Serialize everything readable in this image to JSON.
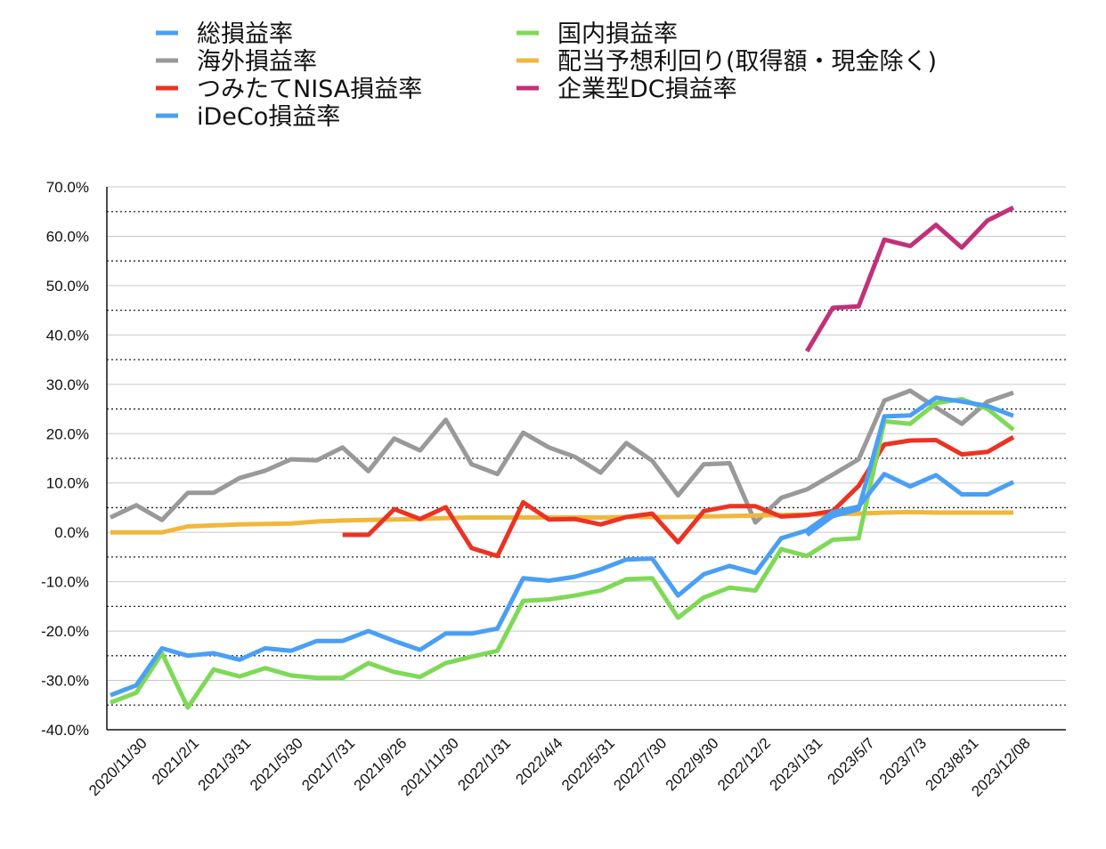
{
  "chart_data": {
    "type": "line",
    "title": "",
    "xlabel": "",
    "ylabel": "",
    "ylim": [
      -40,
      70
    ],
    "y_ticks": [
      "70.0%",
      "60.0%",
      "50.0%",
      "40.0%",
      "30.0%",
      "20.0%",
      "10.0%",
      "0.0%",
      "-10.0%",
      "-20.0%",
      "-30.0%",
      "-40.0%"
    ],
    "x_tick_labels": [
      "2020/11/30",
      "2021/2/1",
      "2021/3/31",
      "2021/5/30",
      "2021/7/31",
      "2021/9/26",
      "2021/11/30",
      "2022/1/31",
      "2022/4/4",
      "2022/5/31",
      "2022/7/30",
      "2022/9/30",
      "2022/12/2",
      "2023/1/31",
      "2023/5/7",
      "2023/7/3",
      "2023/8/31",
      "2023/12/08"
    ],
    "grid": "solid lines at labeled ticks, dotted lines at midpoints",
    "legend_position": "top",
    "series": [
      {
        "name": "総損益率",
        "color": "#4a9ff5",
        "values": [
          -33,
          -31,
          -23.5,
          -25,
          -24.5,
          -25.8,
          -23.5,
          -24,
          -22,
          -22,
          -20,
          -22,
          -23.8,
          -20.5,
          -20.5,
          -19.5,
          -9.3,
          -9.8,
          -9,
          -7.5,
          -5.5,
          -5.3,
          -12.8,
          -8.5,
          -6.8,
          -8.2,
          -1.2,
          0.4,
          4.1,
          5.2,
          11.8,
          9.3,
          11.6,
          7.7,
          7.7,
          10.2
        ]
      },
      {
        "name": "国内損益率",
        "color": "#7ed957",
        "values": [
          -34.5,
          -32.5,
          -24.5,
          -35.5,
          -27.8,
          -29.2,
          -27.5,
          -29,
          -29.5,
          -29.5,
          -26.5,
          -28.3,
          -29.3,
          -26.5,
          -25.2,
          -24,
          -13.9,
          -13.6,
          -12.8,
          -11.8,
          -9.5,
          -9.3,
          -17.3,
          -13.2,
          -11.2,
          -11.8,
          -3.4,
          -4.8,
          -1.5,
          -1.2,
          22.5,
          22,
          26.2,
          27,
          25,
          20.8
        ]
      },
      {
        "name": "海外損益率",
        "color": "#999999",
        "values": [
          3,
          5.5,
          2.5,
          8,
          8,
          11,
          12.5,
          14.8,
          14.6,
          17.2,
          12.4,
          19,
          16.6,
          22.8,
          13.8,
          11.8,
          20.2,
          17.2,
          15.3,
          12.1,
          18.1,
          14.5,
          7.5,
          13.8,
          14,
          2,
          7,
          8.7,
          11.7,
          14.8,
          26.7,
          28.7,
          25.3,
          22,
          26.5,
          28.3
        ]
      },
      {
        "name": "配当予想利回り(取得額・現金除く)",
        "color": "#f1b73c",
        "values": [
          0,
          0,
          0,
          1.2,
          1.4,
          1.6,
          1.7,
          1.8,
          2.2,
          2.4,
          2.5,
          2.6,
          2.7,
          2.9,
          3,
          3,
          3,
          3,
          3,
          3,
          3.1,
          3.1,
          3.1,
          3.2,
          3.3,
          3.4,
          3.5,
          3.6,
          3.7,
          3.8,
          4,
          4.1,
          4,
          4,
          4,
          4
        ]
      },
      {
        "name": "つみたてNISA損益率",
        "color": "#eb3323",
        "values": [
          null,
          null,
          null,
          null,
          null,
          null,
          null,
          null,
          null,
          -0.5,
          -0.5,
          4.7,
          2.7,
          5.1,
          -3.2,
          -4.8,
          6.1,
          2.6,
          2.7,
          1.6,
          3.1,
          3.8,
          -2,
          4.3,
          5.3,
          5.3,
          3.2,
          3.5,
          4.3,
          9.4,
          17.8,
          18.6,
          18.7,
          15.8,
          16.3,
          19.3
        ]
      },
      {
        "name": "企業型DC損益率",
        "color": "#c2307a",
        "values": [
          null,
          null,
          null,
          null,
          null,
          null,
          null,
          null,
          null,
          null,
          null,
          null,
          null,
          null,
          null,
          null,
          null,
          null,
          null,
          null,
          null,
          null,
          null,
          null,
          null,
          null,
          null,
          36.7,
          45.5,
          45.8,
          59.3,
          58,
          62.3,
          57.7,
          63.2,
          65.8
        ]
      },
      {
        "name": "iDeCo損益率",
        "color": "#4a9ff5",
        "values": [
          null,
          null,
          null,
          null,
          null,
          null,
          null,
          null,
          null,
          null,
          null,
          null,
          null,
          null,
          null,
          null,
          null,
          null,
          null,
          null,
          null,
          null,
          null,
          null,
          null,
          null,
          null,
          -0.5,
          3.3,
          4.7,
          23.5,
          23.7,
          27.3,
          26.5,
          25.6,
          23.6
        ]
      }
    ]
  }
}
